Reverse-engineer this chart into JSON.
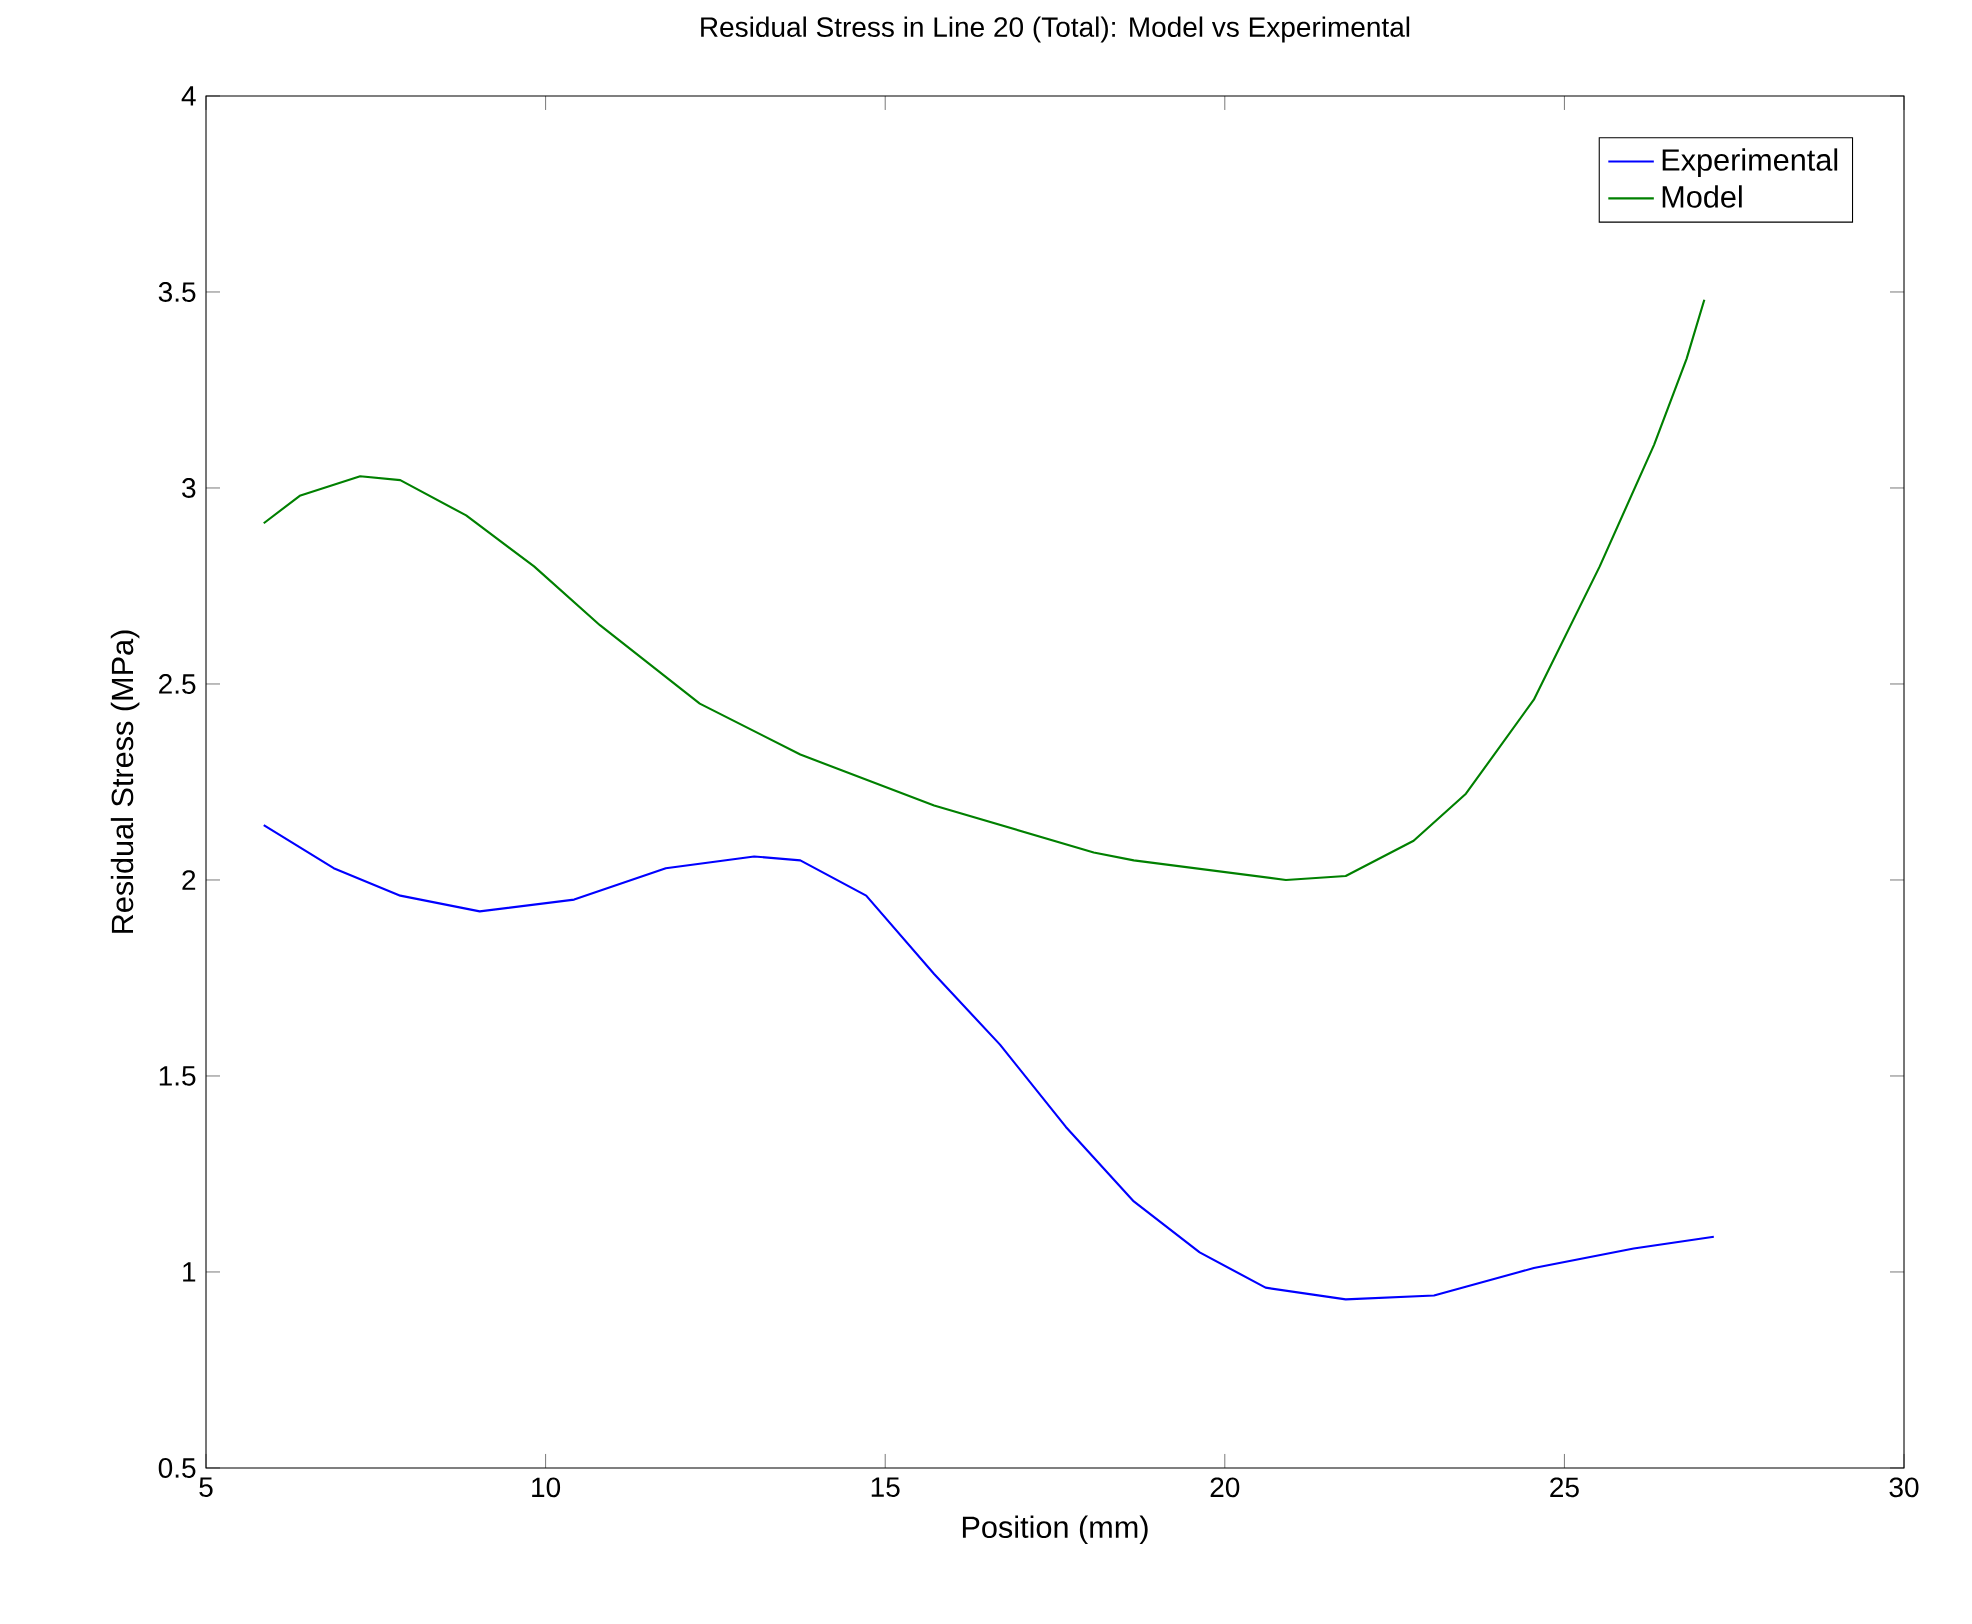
{
  "chart_data": {
    "type": "line",
    "title": "Residual Stress in Line 20 (Total): Model vs Experimental",
    "xlabel": "Position (mm)",
    "ylabel": "Residual Stress (MPa)",
    "xlim": [
      5,
      30
    ],
    "xticks": [
      5,
      10,
      15,
      20,
      25,
      30
    ],
    "ylim": [
      0.5,
      4
    ],
    "yticks": [
      0.5,
      1,
      1.5,
      2,
      2.5,
      3,
      3.5,
      4
    ],
    "legend": "top right",
    "series": [
      {
        "name": "Experimental",
        "color": "#0000ff",
        "x": [
          5.85,
          6.88,
          7.86,
          9.03,
          10.42,
          11.77,
          13.07,
          13.75,
          14.72,
          15.72,
          16.69,
          17.66,
          18.66,
          19.63,
          20.6,
          21.78,
          23.08,
          24.55,
          26.02,
          27.2
        ],
        "values": [
          2.14,
          2.03,
          1.96,
          1.92,
          1.95,
          2.03,
          2.06,
          2.05,
          1.96,
          1.76,
          1.58,
          1.37,
          1.18,
          1.05,
          0.96,
          0.93,
          0.94,
          1.01,
          1.06,
          1.09
        ]
      },
      {
        "name": "Model",
        "color": "#008000",
        "x": [
          5.85,
          6.38,
          7.27,
          7.86,
          8.83,
          9.83,
          10.8,
          12.27,
          13.75,
          15.72,
          18.07,
          18.66,
          20.9,
          21.78,
          22.78,
          23.55,
          24.55,
          25.52,
          26.32,
          26.8,
          27.06
        ],
        "values": [
          2.91,
          2.98,
          3.03,
          3.02,
          2.93,
          2.8,
          2.65,
          2.45,
          2.32,
          2.19,
          2.07,
          2.05,
          2.0,
          2.01,
          2.1,
          2.22,
          2.46,
          2.8,
          3.11,
          3.33,
          3.48
        ]
      }
    ]
  }
}
